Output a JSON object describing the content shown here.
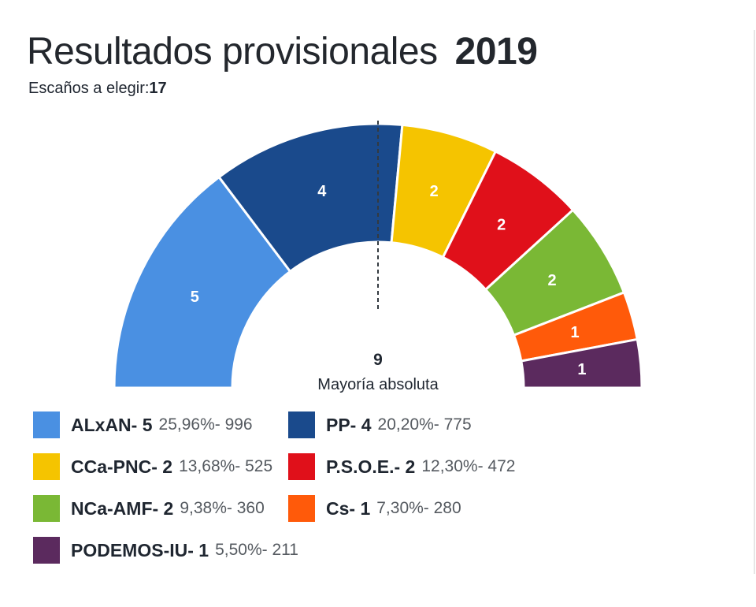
{
  "title": {
    "text": "Resultados provisionales",
    "year": "2019"
  },
  "seats_to_elect": {
    "label": "Escaños a elegir:",
    "value": "17"
  },
  "majority": {
    "value": "9",
    "label": "Mayoría absoluta"
  },
  "chart_data": {
    "type": "pie",
    "subtype": "hemicycle",
    "title": "Resultados provisionales 2019",
    "total_seats": 17,
    "majority": 9,
    "parties": [
      {
        "name": "ALxAN",
        "seats": 5,
        "percent": "25,96%",
        "votes": "996",
        "color": "#4a90e2"
      },
      {
        "name": "PP",
        "seats": 4,
        "percent": "20,20%",
        "votes": "775",
        "color": "#1a4a8c"
      },
      {
        "name": "CCa-PNC",
        "seats": 2,
        "percent": "13,68%",
        "votes": "525",
        "color": "#f5c400"
      },
      {
        "name": "P.S.O.E.",
        "seats": 2,
        "percent": "12,30%",
        "votes": "472",
        "color": "#e0101a"
      },
      {
        "name": "NCa-AMF",
        "seats": 2,
        "percent": "9,38%",
        "votes": "360",
        "color": "#7ab835"
      },
      {
        "name": "Cs",
        "seats": 1,
        "percent": "7,30%",
        "votes": "280",
        "color": "#ff5a0a"
      },
      {
        "name": "PODEMOS-IU",
        "seats": 1,
        "percent": "5,50%",
        "votes": "211",
        "color": "#5b2a5e"
      }
    ]
  }
}
